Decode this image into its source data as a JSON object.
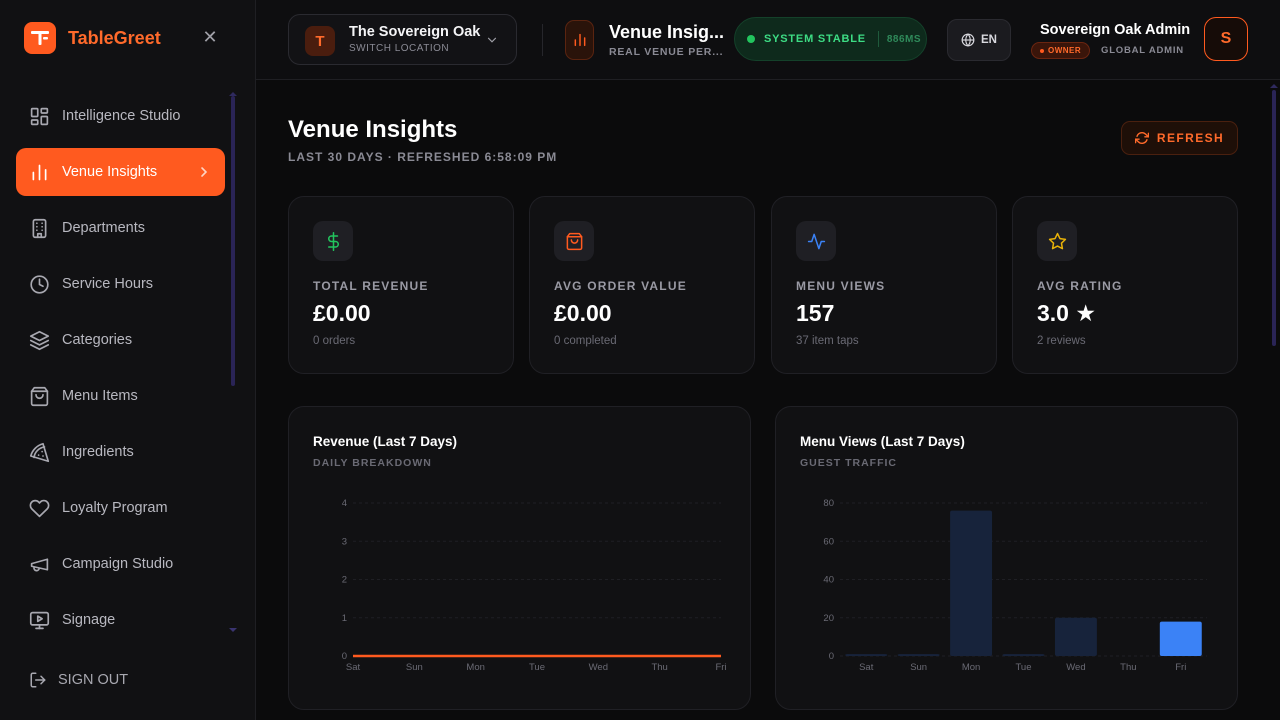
{
  "brand": {
    "name": "TableGreet",
    "logo_letter": "T"
  },
  "sidebar": {
    "items": [
      {
        "label": "Intelligence Studio",
        "icon": "grid-icon",
        "active": false
      },
      {
        "label": "Venue Insights",
        "icon": "bar-chart-icon",
        "active": true
      },
      {
        "label": "Departments",
        "icon": "building-icon",
        "active": false
      },
      {
        "label": "Service Hours",
        "icon": "clock-icon",
        "active": false
      },
      {
        "label": "Categories",
        "icon": "layers-icon",
        "active": false
      },
      {
        "label": "Menu Items",
        "icon": "shopping-bag-icon",
        "active": false
      },
      {
        "label": "Ingredients",
        "icon": "pizza-icon",
        "active": false
      },
      {
        "label": "Loyalty Program",
        "icon": "heart-icon",
        "active": false
      },
      {
        "label": "Campaign Studio",
        "icon": "megaphone-icon",
        "active": false
      },
      {
        "label": "Signage",
        "icon": "monitor-play-icon",
        "active": false
      }
    ],
    "signout_label": "SIGN OUT"
  },
  "topbar": {
    "location_initial": "T",
    "location_name": "The Sovereign Oak",
    "location_sub": "SWITCH LOCATION",
    "page_title": "Venue Insig...",
    "page_sub": "REAL VENUE PER...",
    "status_text": "SYSTEM STABLE",
    "status_latency": "886MS",
    "language": "EN",
    "user_name": "Sovereign Oak Admin",
    "user_badge": "OWNER",
    "user_role": "GLOBAL ADMIN",
    "user_initial": "S"
  },
  "main": {
    "title": "Venue Insights",
    "subtitle": "LAST 30 DAYS · REFRESHED 6:58:09 PM",
    "refresh_label": "REFRESH",
    "kpis": [
      {
        "label": "TOTAL REVENUE",
        "value": "£0.00",
        "sub": "0 orders",
        "icon": "dollar-icon",
        "color": "#22c55e"
      },
      {
        "label": "AVG ORDER VALUE",
        "value": "£0.00",
        "sub": "0 completed",
        "icon": "shopping-bag-icon",
        "color": "#ff5a1f"
      },
      {
        "label": "MENU VIEWS",
        "value": "157",
        "sub": "37 item taps",
        "icon": "activity-icon",
        "color": "#3b82f6"
      },
      {
        "label": "AVG RATING",
        "value": "3.0 ★",
        "sub": "2 reviews",
        "icon": "star-icon",
        "color": "#eab308"
      }
    ]
  },
  "chart_data": [
    {
      "type": "line",
      "title": "Revenue (Last 7 Days)",
      "subtitle": "DAILY BREAKDOWN",
      "categories": [
        "Sat",
        "Sun",
        "Mon",
        "Tue",
        "Wed",
        "Thu",
        "Fri"
      ],
      "series": [
        {
          "values": [
            0,
            0,
            0,
            0,
            0,
            0,
            0
          ]
        }
      ],
      "yticks": [
        0,
        1,
        2,
        3,
        4
      ],
      "ylim": [
        0,
        4
      ],
      "color": "#ff5a1f",
      "grid": true
    },
    {
      "type": "bar",
      "title": "Menu Views (Last 7 Days)",
      "subtitle": "GUEST TRAFFIC",
      "categories": [
        "Sat",
        "Sun",
        "Mon",
        "Tue",
        "Wed",
        "Thu",
        "Fri"
      ],
      "series": [
        {
          "values": [
            1,
            1,
            76,
            1,
            20,
            0,
            18
          ]
        }
      ],
      "yticks": [
        0,
        20,
        40,
        60,
        80
      ],
      "ylim": [
        0,
        80
      ],
      "color": "#3b82f6",
      "muted_color": "#17233b",
      "highlight_index": 6,
      "grid": true
    }
  ]
}
